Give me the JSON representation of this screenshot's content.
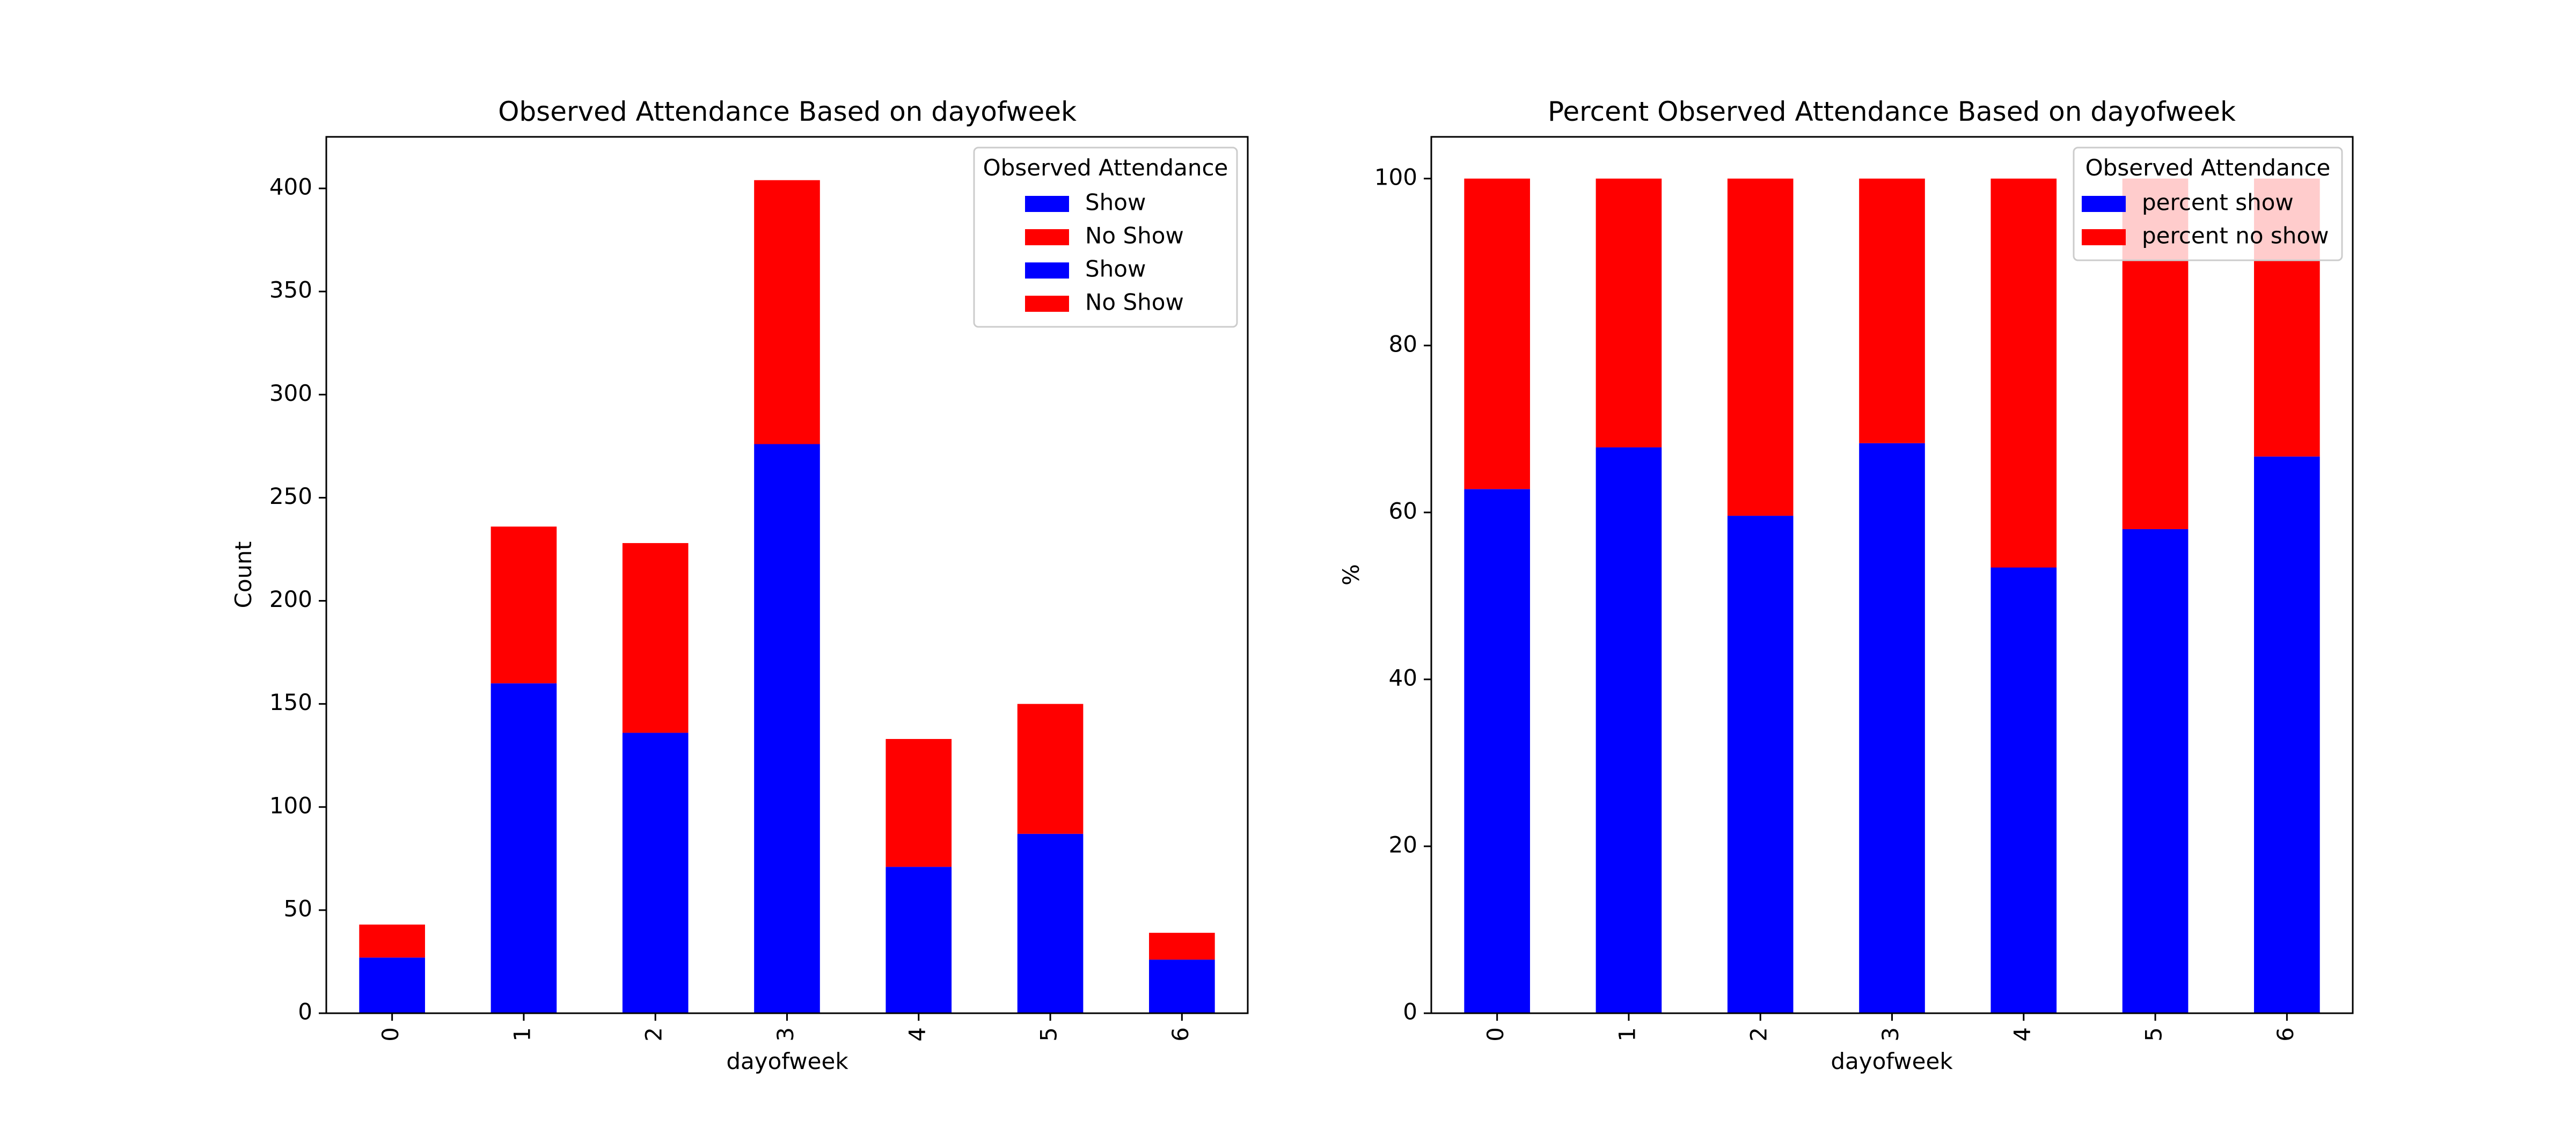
{
  "colors": {
    "show": "#0000ff",
    "no_show": "#ff0000",
    "axes": "#000000",
    "legend_border": "#cccccc"
  },
  "chart_data": [
    {
      "type": "bar",
      "stacked": true,
      "title": "Observed Attendance Based on dayofweek",
      "xlabel": "dayofweek",
      "ylabel": "Count",
      "categories": [
        "0",
        "1",
        "2",
        "3",
        "4",
        "5",
        "6"
      ],
      "ylim": [
        0,
        425
      ],
      "yticks": [
        0,
        50,
        100,
        150,
        200,
        250,
        300,
        350,
        400
      ],
      "series": [
        {
          "name": "Show",
          "color": "#0000ff",
          "values": [
            27,
            160,
            136,
            276,
            71,
            87,
            26
          ]
        },
        {
          "name": "No Show",
          "color": "#ff0000",
          "values": [
            16,
            76,
            92,
            128,
            62,
            63,
            13
          ]
        }
      ],
      "legend": {
        "title": "Observed Attendance",
        "placement": "upper-right",
        "entries": [
          {
            "label": "Show",
            "color": "#0000ff"
          },
          {
            "label": "No Show",
            "color": "#ff0000"
          },
          {
            "label": "Show",
            "color": "#0000ff"
          },
          {
            "label": "No Show",
            "color": "#ff0000"
          }
        ]
      },
      "grid": false
    },
    {
      "type": "bar",
      "stacked": true,
      "title": "Percent Observed Attendance Based on dayofweek",
      "xlabel": "dayofweek",
      "ylabel": "%",
      "categories": [
        "0",
        "1",
        "2",
        "3",
        "4",
        "5",
        "6"
      ],
      "ylim": [
        0,
        105
      ],
      "yticks": [
        0,
        20,
        40,
        60,
        80,
        100
      ],
      "series": [
        {
          "name": "percent show",
          "color": "#0000ff",
          "values": [
            62.8,
            67.8,
            59.6,
            68.3,
            53.4,
            58.0,
            66.7
          ]
        },
        {
          "name": "percent no show",
          "color": "#ff0000",
          "values": [
            37.2,
            32.2,
            40.4,
            31.7,
            46.6,
            42.0,
            33.3
          ]
        }
      ],
      "legend": {
        "title": "Observed Attendance",
        "placement": "upper-right",
        "entries": [
          {
            "label": "percent show",
            "color": "#0000ff"
          },
          {
            "label": "percent no show",
            "color": "#ff0000"
          }
        ]
      },
      "grid": false
    }
  ]
}
